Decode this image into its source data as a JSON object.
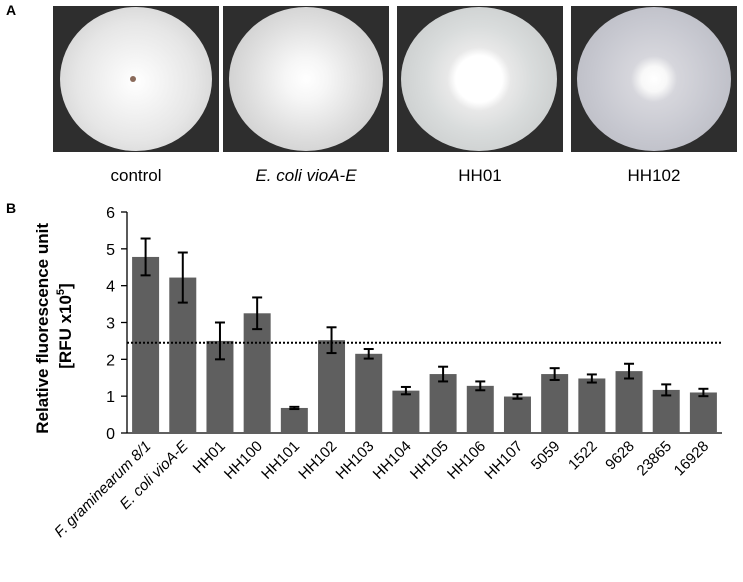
{
  "panel_a": {
    "letter": "A",
    "plates": [
      {
        "caption": "control",
        "italic": false,
        "growth": "full"
      },
      {
        "caption": "E. coli vioA-E",
        "italic": true,
        "growth": "full"
      },
      {
        "caption": "HH01",
        "italic": false,
        "growth": "medium"
      },
      {
        "caption": "HH102",
        "italic": false,
        "growth": "small"
      }
    ]
  },
  "panel_b": {
    "letter": "B"
  },
  "chart_data": {
    "type": "bar",
    "ylabel_line1": "Relative fluorescence unit",
    "ylabel_line2_prefix": "[RFU x10",
    "ylabel_line2_sup": "5",
    "ylabel_line2_suffix": "]",
    "ylim": [
      0,
      6
    ],
    "yticks": [
      "0",
      "1",
      "2",
      "3",
      "4",
      "5",
      "6"
    ],
    "threshold": 2.45,
    "bar_color": "#5f5f5f",
    "categories": [
      "F. graminearum 8/1",
      "E. coli vioA-E",
      "HH01",
      "HH100",
      "HH101",
      "HH102",
      "HH103",
      "HH104",
      "HH105",
      "HH106",
      "HH107",
      "5059",
      "1522",
      "9628",
      "23865",
      "16928"
    ],
    "italic_categories": [
      0,
      1
    ],
    "values": [
      4.78,
      4.22,
      2.5,
      3.25,
      0.68,
      2.52,
      2.15,
      1.15,
      1.6,
      1.28,
      0.99,
      1.6,
      1.48,
      1.68,
      1.17,
      1.1
    ],
    "errors": [
      0.5,
      0.68,
      0.5,
      0.43,
      0.03,
      0.35,
      0.13,
      0.1,
      0.2,
      0.12,
      0.06,
      0.16,
      0.11,
      0.2,
      0.15,
      0.1
    ]
  }
}
